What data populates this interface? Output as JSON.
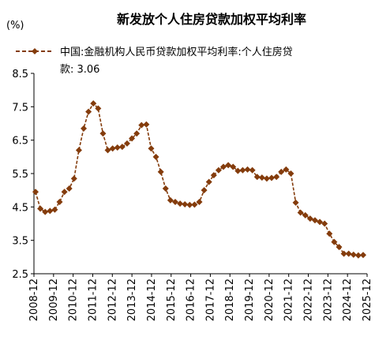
{
  "chart_data": {
    "type": "line",
    "title": "新发放个人住房贷款加权平均利率",
    "unit_label": "(%)",
    "legend_position": "top",
    "legend_line1": "中国:金融机构人民币贷款加权平均利率:个人住房贷",
    "legend_line2": "款: 3.06",
    "series": [
      {
        "name": "中国:金融机构人民币贷款加权平均利率:个人住房贷款",
        "color": "#843c0c",
        "marker": "diamond",
        "line_style": "dashed",
        "values": [
          4.95,
          4.45,
          4.35,
          4.38,
          4.42,
          4.65,
          4.95,
          5.05,
          5.35,
          6.2,
          6.85,
          7.35,
          7.6,
          7.45,
          6.7,
          6.2,
          6.25,
          6.28,
          6.3,
          6.4,
          6.55,
          6.7,
          6.95,
          6.97,
          6.25,
          6.0,
          5.55,
          5.05,
          4.7,
          4.65,
          4.6,
          4.58,
          4.56,
          4.57,
          4.65,
          5.0,
          5.25,
          5.45,
          5.6,
          5.7,
          5.75,
          5.7,
          5.58,
          5.6,
          5.62,
          5.6,
          5.4,
          5.38,
          5.35,
          5.37,
          5.4,
          5.55,
          5.62,
          5.5,
          4.63,
          4.33,
          4.25,
          4.15,
          4.1,
          4.05,
          4.0,
          3.7,
          3.45,
          3.3,
          3.1,
          3.1,
          3.07,
          3.05,
          3.06
        ]
      }
    ],
    "x_start": "2008-12",
    "x_end": "2025-12",
    "x_tick_labels": [
      "2008-12",
      "2009-12",
      "2010-12",
      "2011-12",
      "2012-12",
      "2013-12",
      "2014-12",
      "2015-12",
      "2016-12",
      "2017-12",
      "2018-12",
      "2019-12",
      "2020-12",
      "2021-12",
      "2022-12",
      "2023-12",
      "2024-12",
      "2025-12"
    ],
    "y_ticks": [
      2.5,
      3.5,
      4.5,
      5.5,
      6.5,
      7.5,
      8.5
    ],
    "y_tick_labels": [
      "2.5",
      "3.5",
      "4.5",
      "5.5",
      "6.5",
      "7.5",
      "8.5"
    ],
    "ylim": [
      2.5,
      8.5
    ],
    "grid": false
  }
}
